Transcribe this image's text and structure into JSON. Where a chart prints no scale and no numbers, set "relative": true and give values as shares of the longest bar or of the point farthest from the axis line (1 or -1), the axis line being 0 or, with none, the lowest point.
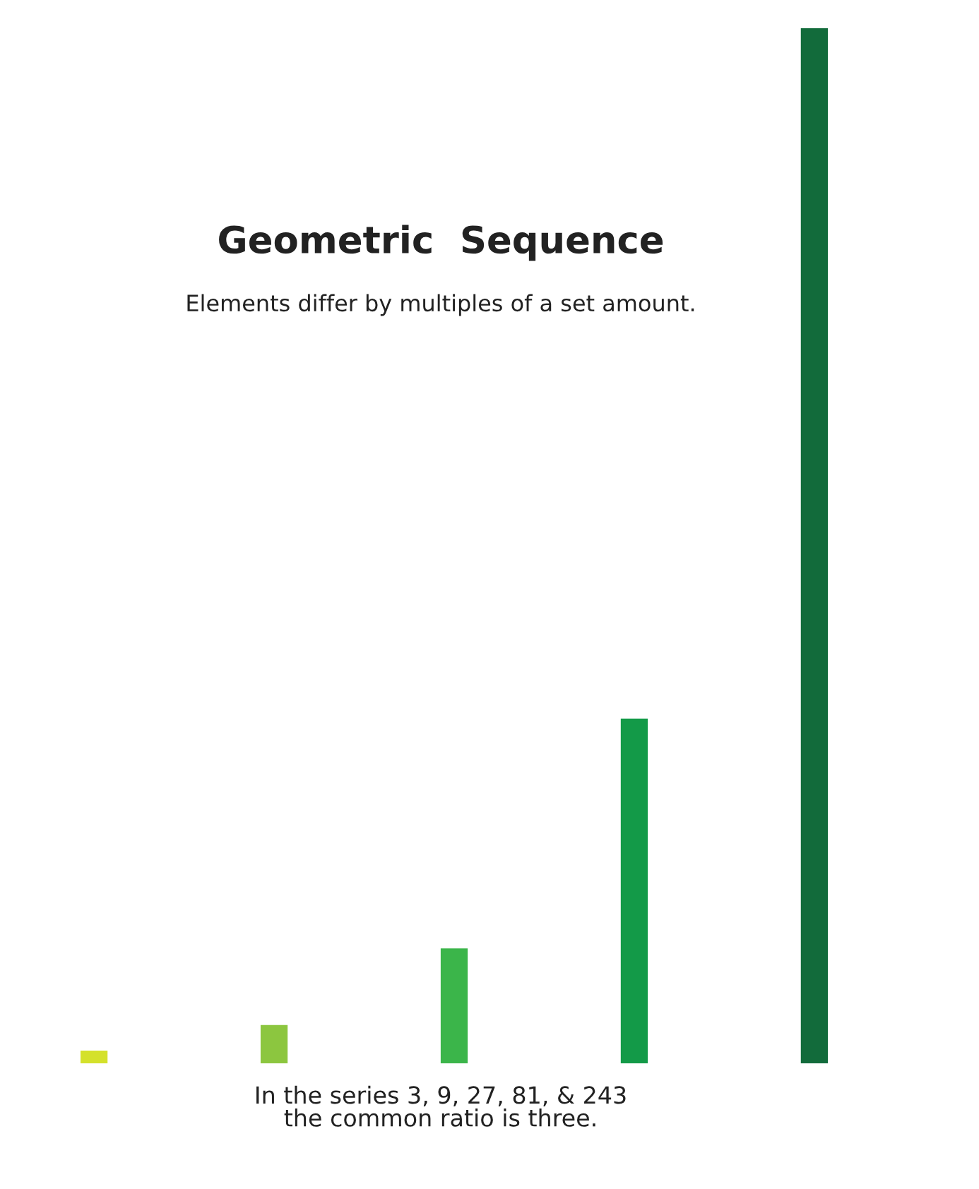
{
  "chart_data": {
    "type": "bar",
    "title": "Geometric  Sequence",
    "subtitle": "Elements differ by multiples of a set amount.",
    "categories": [
      null,
      null,
      null,
      null,
      null
    ],
    "values": [
      0.0123,
      0.037,
      0.111,
      0.333,
      1
    ],
    "colors": [
      "#d4e12b",
      "#8cc63f",
      "#3bb54a",
      "#139a48",
      "#126b3b"
    ],
    "relative": true,
    "annotations": [
      "In the series 3, 9, 27, 81, & 243\nthe common ratio is three."
    ]
  }
}
